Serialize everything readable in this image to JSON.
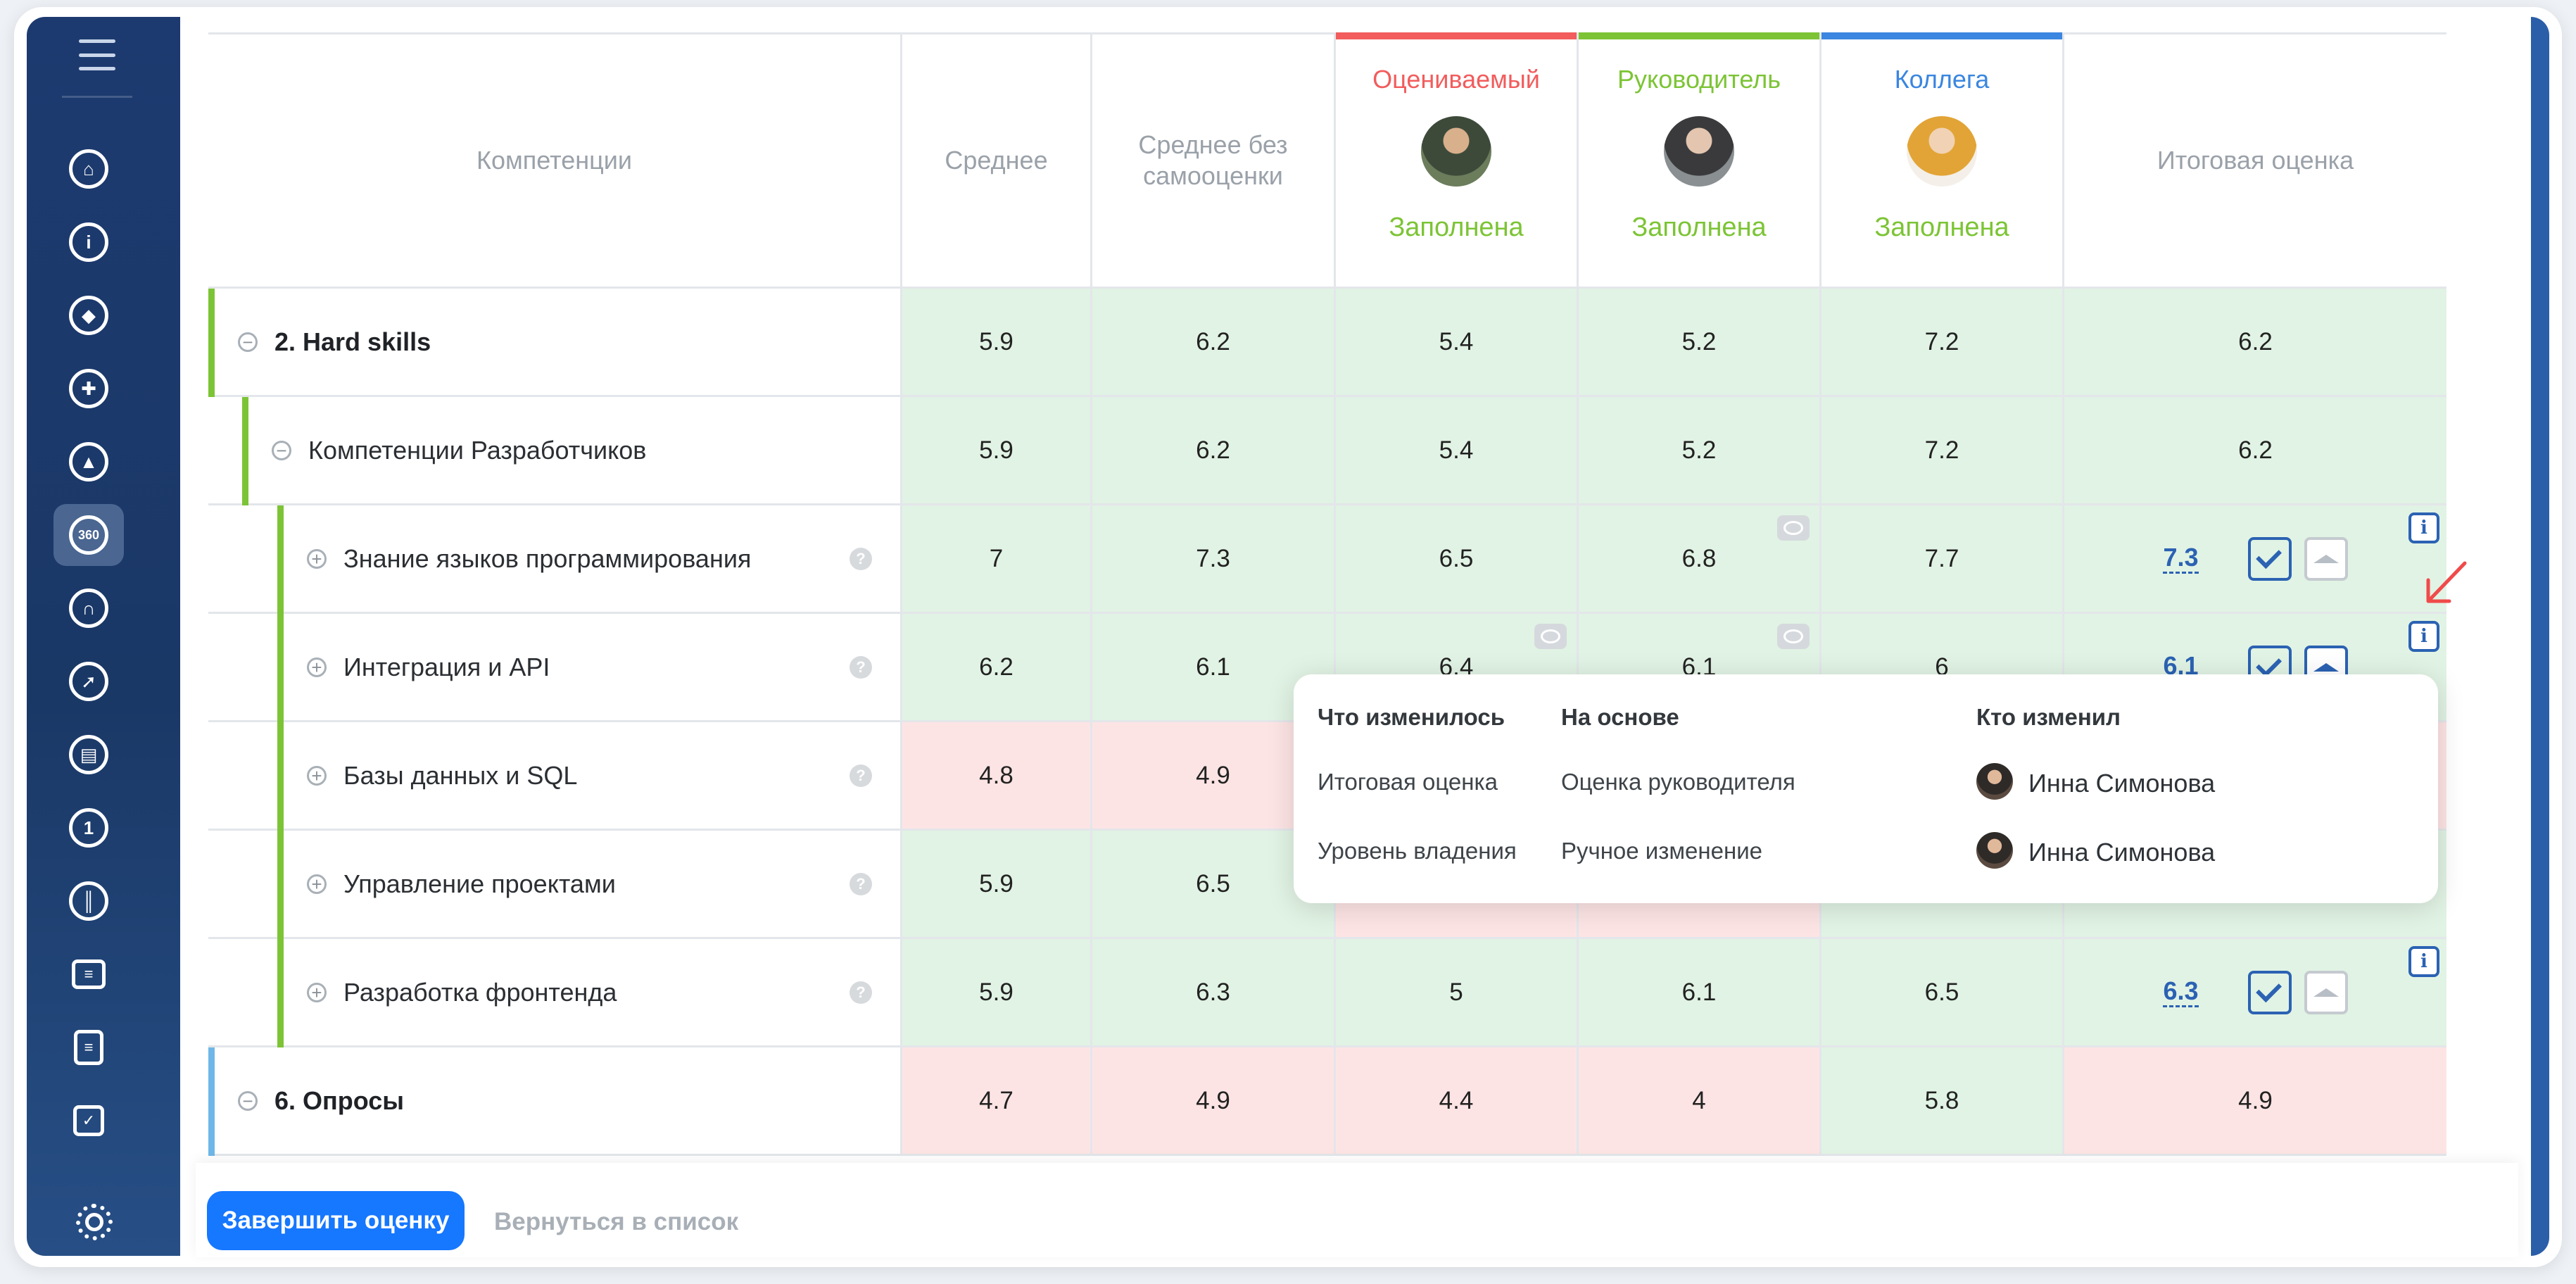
{
  "sidebar": {
    "items": [
      {
        "icon": "home-icon"
      },
      {
        "icon": "info-icon"
      },
      {
        "icon": "map-pin-icon"
      },
      {
        "icon": "gamepad-icon"
      },
      {
        "icon": "graduation-cap-icon"
      },
      {
        "icon": "360-icon",
        "label": "360"
      },
      {
        "icon": "headset-icon"
      },
      {
        "icon": "rocket-icon"
      },
      {
        "icon": "book-icon"
      },
      {
        "icon": "compass-icon"
      },
      {
        "icon": "library-icon"
      },
      {
        "icon": "id-card-icon"
      },
      {
        "icon": "document-icon"
      },
      {
        "icon": "checkbox-icon"
      }
    ],
    "settings_icon": "gear-icon"
  },
  "table": {
    "headers": {
      "competencies": "Компетенции",
      "average": "Среднее",
      "average_no_self": "Среднее без самооценки",
      "final": "Итоговая оценка"
    },
    "evaluators": [
      {
        "role": "Оцениваемый",
        "status": "Заполнена",
        "color": "#f25c5c"
      },
      {
        "role": "Руководитель",
        "status": "Заполнена",
        "color": "#7cc435"
      },
      {
        "role": "Коллега",
        "status": "Заполнена",
        "color": "#3a86e0"
      }
    ],
    "rows": [
      {
        "label": "2. Hard skills",
        "values": [
          "5.9",
          "6.2",
          "5.4",
          "5.2",
          "7.2",
          "6.2"
        ]
      },
      {
        "label": "Компетенции Разработчиков",
        "values": [
          "5.9",
          "6.2",
          "5.4",
          "5.2",
          "7.2",
          "6.2"
        ]
      },
      {
        "label": "Знание языков программирования",
        "values": [
          "7",
          "7.3",
          "6.5",
          "6.8",
          "7.7"
        ],
        "final": "7.3"
      },
      {
        "label": "Интеграция и API",
        "values": [
          "6.2",
          "6.1",
          "6.4",
          "6.1",
          "6"
        ],
        "final": "6.1"
      },
      {
        "label": "Базы данных и SQL",
        "values": [
          "4.8",
          "4.9"
        ]
      },
      {
        "label": "Управление проектами",
        "values": [
          "5.9",
          "6.5"
        ]
      },
      {
        "label": "Разработка фронтенда",
        "values": [
          "5.9",
          "6.3",
          "5",
          "6.1",
          "6.5"
        ],
        "final": "6.3"
      },
      {
        "label": "6. Опросы",
        "values": [
          "4.7",
          "4.9",
          "4.4",
          "4",
          "5.8",
          "4.9"
        ]
      }
    ]
  },
  "popover": {
    "headers": {
      "what": "Что изменилось",
      "basis": "На основе",
      "who": "Кто изменил"
    },
    "entries": [
      {
        "what": "Итоговая оценка",
        "basis": "Оценка руководителя",
        "who": "Инна Симонова"
      },
      {
        "what": "Уровень владения",
        "basis": "Ручное изменение",
        "who": "Инна Симонова"
      }
    ]
  },
  "footer": {
    "finish_label": "Завершить оценку",
    "back_label": "Вернуться в список"
  },
  "colors": {
    "accent": "#1677ff",
    "cell_green": "#e1f3e4",
    "cell_red": "#fde4e4",
    "level1_bar": "#7cc435",
    "level2_bar": "#7cc435",
    "opros_bar": "#6fb7e8"
  }
}
